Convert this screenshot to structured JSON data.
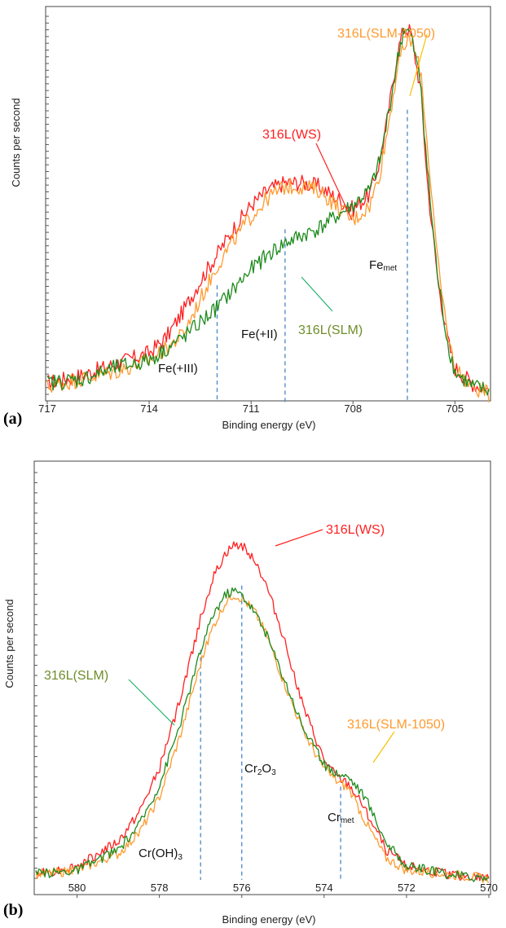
{
  "chart_data": [
    {
      "panel": "(a)",
      "type": "line",
      "xlabel": "Binding energy (eV)",
      "ylabel": "Counts per second",
      "x_reversed": true,
      "xlim": [
        717,
        704
      ],
      "ylim": [
        0,
        1
      ],
      "x_ticks": [
        717,
        714,
        711,
        708,
        705
      ],
      "grid": false,
      "legend": "none",
      "series": [
        {
          "name": "316L(WS)",
          "color": "#ff2020",
          "points": [
            [
              717,
              0.03
            ],
            [
              716,
              0.05
            ],
            [
              715,
              0.08
            ],
            [
              714,
              0.11
            ],
            [
              713.5,
              0.15
            ],
            [
              713,
              0.22
            ],
            [
              712.5,
              0.3
            ],
            [
              712,
              0.37
            ],
            [
              711.5,
              0.44
            ],
            [
              711,
              0.5
            ],
            [
              710.5,
              0.54
            ],
            [
              710,
              0.56
            ],
            [
              709.5,
              0.56
            ],
            [
              709,
              0.55
            ],
            [
              708.5,
              0.52
            ],
            [
              708,
              0.49
            ],
            [
              707.5,
              0.53
            ],
            [
              707.2,
              0.62
            ],
            [
              707,
              0.72
            ],
            [
              706.7,
              0.9
            ],
            [
              706.5,
              0.97
            ],
            [
              706.3,
              0.96
            ],
            [
              706,
              0.8
            ],
            [
              705.8,
              0.55
            ],
            [
              705.5,
              0.3
            ],
            [
              705.2,
              0.14
            ],
            [
              705,
              0.07
            ],
            [
              704.5,
              0.03
            ],
            [
              704,
              0.01
            ]
          ],
          "label_text": "316L(WS)"
        },
        {
          "name": "316L(SLM-1050)",
          "color": "#ff9a2e",
          "points": [
            [
              717,
              0.02
            ],
            [
              716,
              0.04
            ],
            [
              715,
              0.06
            ],
            [
              714,
              0.09
            ],
            [
              713.5,
              0.12
            ],
            [
              713,
              0.16
            ],
            [
              712.5,
              0.25
            ],
            [
              712,
              0.34
            ],
            [
              711.5,
              0.41
            ],
            [
              711,
              0.47
            ],
            [
              710.5,
              0.52
            ],
            [
              710,
              0.55
            ],
            [
              709.5,
              0.55
            ],
            [
              709,
              0.54
            ],
            [
              708.5,
              0.5
            ],
            [
              708,
              0.46
            ],
            [
              707.5,
              0.5
            ],
            [
              707.2,
              0.59
            ],
            [
              707,
              0.69
            ],
            [
              706.7,
              0.86
            ],
            [
              706.5,
              0.92
            ],
            [
              706.3,
              0.94
            ],
            [
              706,
              0.85
            ],
            [
              705.8,
              0.65
            ],
            [
              705.5,
              0.34
            ],
            [
              705.2,
              0.15
            ],
            [
              705,
              0.07
            ],
            [
              704.5,
              0.02
            ],
            [
              704,
              0.0
            ]
          ],
          "label_text": "316L(SLM-1050)"
        },
        {
          "name": "316L(SLM)",
          "color": "#1d8a1d",
          "points": [
            [
              717,
              0.03
            ],
            [
              716,
              0.04
            ],
            [
              715,
              0.07
            ],
            [
              714,
              0.09
            ],
            [
              713.5,
              0.12
            ],
            [
              713,
              0.15
            ],
            [
              712.5,
              0.19
            ],
            [
              712,
              0.23
            ],
            [
              711.5,
              0.28
            ],
            [
              711,
              0.33
            ],
            [
              710.5,
              0.37
            ],
            [
              710,
              0.4
            ],
            [
              709.5,
              0.42
            ],
            [
              709,
              0.44
            ],
            [
              708.5,
              0.47
            ],
            [
              708,
              0.5
            ],
            [
              707.5,
              0.54
            ],
            [
              707.2,
              0.62
            ],
            [
              707,
              0.72
            ],
            [
              706.7,
              0.88
            ],
            [
              706.5,
              0.97
            ],
            [
              706.3,
              0.95
            ],
            [
              706,
              0.82
            ],
            [
              705.8,
              0.58
            ],
            [
              705.5,
              0.3
            ],
            [
              705.2,
              0.13
            ],
            [
              705,
              0.06
            ],
            [
              704.5,
              0.02
            ],
            [
              704,
              0.01
            ]
          ],
          "label_text": "316L(SLM)"
        }
      ],
      "reference_lines": [
        {
          "x": 712.0,
          "label": "Fe(+III)"
        },
        {
          "x": 710.0,
          "label": "Fe(+II)"
        },
        {
          "x": 706.4,
          "label": "Fe",
          "sub": "met"
        }
      ]
    },
    {
      "panel": "(b)",
      "type": "line",
      "xlabel": "Binding energy (eV)",
      "ylabel": "Counts per second",
      "x_reversed": true,
      "xlim": [
        581,
        570
      ],
      "ylim": [
        0,
        1
      ],
      "x_ticks": [
        580,
        578,
        576,
        574,
        572,
        570
      ],
      "grid": false,
      "legend": "none",
      "series": [
        {
          "name": "316L(WS)",
          "color": "#ff2020",
          "points": [
            [
              581,
              0.01
            ],
            [
              580,
              0.03
            ],
            [
              579,
              0.09
            ],
            [
              578.5,
              0.16
            ],
            [
              578,
              0.27
            ],
            [
              577.5,
              0.44
            ],
            [
              577,
              0.64
            ],
            [
              576.7,
              0.74
            ],
            [
              576.4,
              0.8
            ],
            [
              576.2,
              0.82
            ],
            [
              576,
              0.82
            ],
            [
              575.7,
              0.79
            ],
            [
              575.4,
              0.72
            ],
            [
              575,
              0.6
            ],
            [
              574.5,
              0.42
            ],
            [
              574,
              0.29
            ],
            [
              573.7,
              0.25
            ],
            [
              573.4,
              0.23
            ],
            [
              573,
              0.17
            ],
            [
              572.5,
              0.07
            ],
            [
              572,
              0.03
            ],
            [
              571,
              0.01
            ],
            [
              570,
              0.0
            ]
          ],
          "label_text": "316L(WS)"
        },
        {
          "name": "316L(SLM-1050)",
          "color": "#ff9a2e",
          "points": [
            [
              581,
              0.01
            ],
            [
              580,
              0.02
            ],
            [
              579,
              0.06
            ],
            [
              578.5,
              0.11
            ],
            [
              578,
              0.2
            ],
            [
              577.5,
              0.35
            ],
            [
              577,
              0.53
            ],
            [
              576.7,
              0.62
            ],
            [
              576.4,
              0.68
            ],
            [
              576.2,
              0.7
            ],
            [
              576,
              0.69
            ],
            [
              575.7,
              0.66
            ],
            [
              575.4,
              0.6
            ],
            [
              575,
              0.49
            ],
            [
              574.5,
              0.36
            ],
            [
              574,
              0.27
            ],
            [
              573.7,
              0.24
            ],
            [
              573.4,
              0.22
            ],
            [
              573,
              0.14
            ],
            [
              572.5,
              0.05
            ],
            [
              572,
              0.02
            ],
            [
              571,
              0.01
            ],
            [
              570,
              0.0
            ]
          ],
          "label_text": "316L(SLM-1050)"
        },
        {
          "name": "316L(SLM)",
          "color": "#1d8a1d",
          "points": [
            [
              581,
              0.01
            ],
            [
              580,
              0.02
            ],
            [
              579,
              0.07
            ],
            [
              578.5,
              0.13
            ],
            [
              578,
              0.23
            ],
            [
              577.5,
              0.38
            ],
            [
              577,
              0.56
            ],
            [
              576.7,
              0.65
            ],
            [
              576.4,
              0.7
            ],
            [
              576.2,
              0.71
            ],
            [
              576,
              0.7
            ],
            [
              575.7,
              0.66
            ],
            [
              575.4,
              0.6
            ],
            [
              575,
              0.5
            ],
            [
              574.5,
              0.37
            ],
            [
              574,
              0.28
            ],
            [
              573.7,
              0.26
            ],
            [
              573.4,
              0.25
            ],
            [
              573,
              0.2
            ],
            [
              572.5,
              0.09
            ],
            [
              572,
              0.03
            ],
            [
              571,
              0.01
            ],
            [
              570,
              0.0
            ]
          ],
          "label_text": "316L(SLM)"
        }
      ],
      "reference_lines": [
        {
          "x": 577.0,
          "label": "Cr(OH)",
          "sub": "3"
        },
        {
          "x": 576.0,
          "label": "Cr",
          "sub": "2",
          "label2": "O",
          "sub2": "3"
        },
        {
          "x": 573.6,
          "label": "Cr",
          "sub": "met"
        }
      ]
    }
  ]
}
